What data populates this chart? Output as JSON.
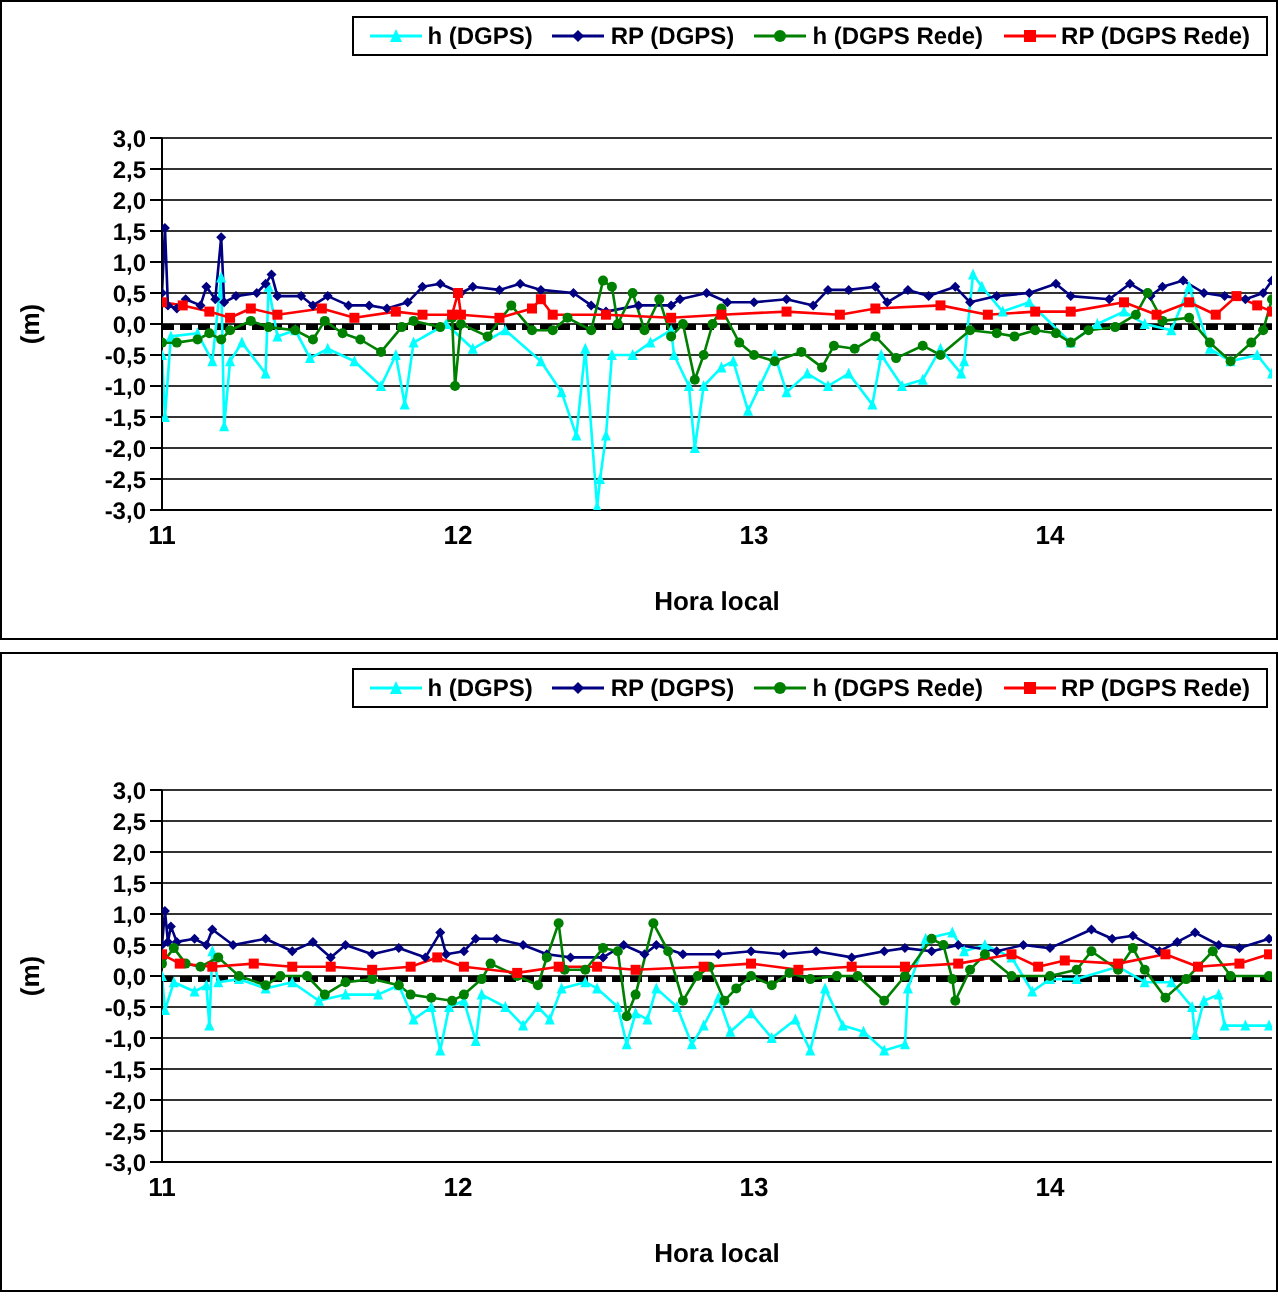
{
  "chart_data": [
    {
      "type": "line",
      "xlabel": "Hora local",
      "ylabel": "(m)",
      "xlim": [
        11,
        14.75
      ],
      "xticks": [
        11,
        12,
        13,
        14
      ],
      "ylim": [
        -3,
        3
      ],
      "yticks": [
        {
          "value": 3,
          "label": "3,0"
        },
        {
          "value": 2.5,
          "label": "2,5"
        },
        {
          "value": 2,
          "label": "2,0"
        },
        {
          "value": 1.5,
          "label": "1,5"
        },
        {
          "value": 1,
          "label": "1,0"
        },
        {
          "value": 0.5,
          "label": "0,5"
        },
        {
          "value": 0,
          "label": "0,0"
        },
        {
          "value": -0.5,
          "label": "-0,5"
        },
        {
          "value": -1,
          "label": "-1,0"
        },
        {
          "value": -1.5,
          "label": "-1,5"
        },
        {
          "value": -2,
          "label": "-2,0"
        },
        {
          "value": -2.5,
          "label": "-2,5"
        },
        {
          "value": -3,
          "label": "-3,0"
        }
      ],
      "grid": "y",
      "legend": "top",
      "ref_lines": [
        {
          "axis": "y",
          "value": -0.05,
          "color": "#000000",
          "line_style": "dashed"
        }
      ],
      "series": [
        {
          "name": "h (DGPS)",
          "color": "#00ffff",
          "marker": "triangle",
          "x": [
            11.0,
            11.01,
            11.03,
            11.12,
            11.17,
            11.2,
            11.21,
            11.23,
            11.27,
            11.35,
            11.36,
            11.39,
            11.45,
            11.5,
            11.56,
            11.65,
            11.74,
            11.79,
            11.82,
            11.85,
            11.96,
            12.05,
            12.16,
            12.28,
            12.35,
            12.4,
            12.43,
            12.47,
            12.48,
            12.5,
            12.52,
            12.59,
            12.65,
            12.72,
            12.73,
            12.78,
            12.8,
            12.83,
            12.89,
            12.93,
            12.98,
            13.02,
            13.07,
            13.11,
            13.18,
            13.25,
            13.32,
            13.4,
            13.43,
            13.5,
            13.57,
            13.63,
            13.7,
            13.71,
            13.74,
            13.77,
            13.84,
            13.93,
            14.07,
            14.16,
            14.25,
            14.32,
            14.41,
            14.47,
            14.54,
            14.61,
            14.7,
            14.75
          ],
          "values": [
            -0.5,
            -1.5,
            -0.2,
            -0.15,
            -0.6,
            0.75,
            -1.65,
            -0.6,
            -0.3,
            -0.8,
            0.6,
            -0.2,
            -0.1,
            -0.55,
            -0.4,
            -0.6,
            -1.0,
            -0.5,
            -1.3,
            -0.3,
            0.0,
            -0.4,
            -0.1,
            -0.6,
            -1.1,
            -1.8,
            -0.4,
            -2.95,
            -2.5,
            -1.8,
            -0.5,
            -0.5,
            -0.3,
            -0.1,
            -0.5,
            -1.0,
            -2.0,
            -1.0,
            -0.7,
            -0.6,
            -1.4,
            -1.0,
            -0.5,
            -1.1,
            -0.8,
            -1.0,
            -0.8,
            -1.3,
            -0.5,
            -1.0,
            -0.9,
            -0.4,
            -0.8,
            -0.6,
            0.8,
            0.6,
            0.2,
            0.35,
            -0.3,
            0.0,
            0.2,
            0.0,
            -0.1,
            0.6,
            -0.4,
            -0.6,
            -0.5,
            -0.8
          ]
        },
        {
          "name": "RP (DGPS)",
          "color": "#000080",
          "marker": "diamond",
          "x": [
            11.0,
            11.01,
            11.02,
            11.05,
            11.08,
            11.13,
            11.15,
            11.18,
            11.2,
            11.21,
            11.25,
            11.32,
            11.35,
            11.37,
            11.39,
            11.47,
            11.51,
            11.56,
            11.63,
            11.7,
            11.76,
            11.83,
            11.88,
            11.94,
            12.01,
            12.05,
            12.14,
            12.21,
            12.28,
            12.39,
            12.45,
            12.5,
            12.61,
            12.72,
            12.75,
            12.84,
            12.91,
            13.0,
            13.11,
            13.2,
            13.25,
            13.32,
            13.41,
            13.45,
            13.52,
            13.59,
            13.68,
            13.73,
            13.82,
            13.93,
            14.02,
            14.07,
            14.2,
            14.27,
            14.34,
            14.38,
            14.45,
            14.52,
            14.59,
            14.66,
            14.72,
            14.75
          ],
          "values": [
            0.5,
            1.55,
            0.3,
            0.25,
            0.4,
            0.3,
            0.6,
            0.4,
            1.4,
            0.35,
            0.45,
            0.5,
            0.65,
            0.8,
            0.45,
            0.45,
            0.3,
            0.45,
            0.3,
            0.3,
            0.25,
            0.35,
            0.6,
            0.65,
            0.5,
            0.6,
            0.55,
            0.65,
            0.55,
            0.5,
            0.3,
            0.2,
            0.3,
            0.3,
            0.4,
            0.5,
            0.35,
            0.35,
            0.4,
            0.3,
            0.55,
            0.55,
            0.6,
            0.35,
            0.55,
            0.45,
            0.6,
            0.35,
            0.45,
            0.5,
            0.65,
            0.45,
            0.4,
            0.65,
            0.45,
            0.6,
            0.7,
            0.5,
            0.45,
            0.4,
            0.5,
            0.7
          ]
        },
        {
          "name": "h (DGPS Rede)",
          "color": "#008000",
          "marker": "circle",
          "x": [
            11.0,
            11.05,
            11.12,
            11.16,
            11.2,
            11.23,
            11.3,
            11.36,
            11.45,
            11.51,
            11.55,
            11.61,
            11.67,
            11.74,
            11.81,
            11.85,
            11.94,
            11.98,
            11.99,
            12.01,
            12.1,
            12.18,
            12.25,
            12.32,
            12.37,
            12.45,
            12.49,
            12.52,
            12.54,
            12.59,
            12.63,
            12.68,
            12.72,
            12.76,
            12.8,
            12.83,
            12.86,
            12.89,
            12.95,
            13.0,
            13.07,
            13.16,
            13.23,
            13.27,
            13.34,
            13.41,
            13.48,
            13.57,
            13.63,
            13.73,
            13.82,
            13.88,
            13.95,
            14.02,
            14.07,
            14.13,
            14.22,
            14.29,
            14.33,
            14.38,
            14.47,
            14.54,
            14.61,
            14.68,
            14.72,
            14.75
          ],
          "values": [
            -0.3,
            -0.3,
            -0.25,
            -0.15,
            -0.25,
            -0.1,
            0.05,
            -0.05,
            -0.1,
            -0.25,
            0.05,
            -0.15,
            -0.25,
            -0.45,
            -0.05,
            0.05,
            -0.05,
            0.1,
            -1.0,
            0.0,
            -0.2,
            0.3,
            -0.1,
            -0.1,
            0.1,
            -0.1,
            0.7,
            0.6,
            0.0,
            0.5,
            -0.1,
            0.4,
            -0.2,
            0.0,
            -0.9,
            -0.5,
            0.0,
            0.25,
            -0.3,
            -0.5,
            -0.6,
            -0.45,
            -0.7,
            -0.35,
            -0.4,
            -0.2,
            -0.55,
            -0.35,
            -0.5,
            -0.1,
            -0.15,
            -0.2,
            -0.1,
            -0.15,
            -0.3,
            -0.1,
            -0.05,
            0.15,
            0.5,
            0.05,
            0.1,
            -0.3,
            -0.6,
            -0.3,
            -0.1,
            0.4
          ]
        },
        {
          "name": "RP (DGPS Rede)",
          "color": "#ff0000",
          "marker": "square",
          "x": [
            11.0,
            11.07,
            11.16,
            11.23,
            11.3,
            11.39,
            11.54,
            11.65,
            11.79,
            11.88,
            11.98,
            12.0,
            12.01,
            12.14,
            12.25,
            12.28,
            12.32,
            12.5,
            12.72,
            12.89,
            13.11,
            13.29,
            13.41,
            13.63,
            13.79,
            13.95,
            14.07,
            14.25,
            14.36,
            14.47,
            14.56,
            14.63,
            14.7,
            14.75
          ],
          "values": [
            0.35,
            0.3,
            0.2,
            0.1,
            0.25,
            0.15,
            0.25,
            0.1,
            0.2,
            0.15,
            0.15,
            0.5,
            0.15,
            0.1,
            0.25,
            0.4,
            0.15,
            0.15,
            0.1,
            0.15,
            0.2,
            0.15,
            0.25,
            0.3,
            0.15,
            0.2,
            0.2,
            0.35,
            0.15,
            0.35,
            0.15,
            0.45,
            0.3,
            0.2
          ]
        }
      ]
    },
    {
      "type": "line",
      "xlabel": "Hora local",
      "ylabel": "(m)",
      "xlim": [
        11,
        14.75
      ],
      "xticks": [
        11,
        12,
        13,
        14
      ],
      "ylim": [
        -3,
        3
      ],
      "yticks": [
        {
          "value": 3,
          "label": "3,0"
        },
        {
          "value": 2.5,
          "label": "2,5"
        },
        {
          "value": 2,
          "label": "2,0"
        },
        {
          "value": 1.5,
          "label": "1,5"
        },
        {
          "value": 1,
          "label": "1,0"
        },
        {
          "value": 0.5,
          "label": "0,5"
        },
        {
          "value": 0,
          "label": "0,0"
        },
        {
          "value": -0.5,
          "label": "-0,5"
        },
        {
          "value": -1,
          "label": "-1,0"
        },
        {
          "value": -1.5,
          "label": "-1,5"
        },
        {
          "value": -2,
          "label": "-2,0"
        },
        {
          "value": -2.5,
          "label": "-2,5"
        },
        {
          "value": -3,
          "label": "-3,0"
        }
      ],
      "grid": "y",
      "legend": "top",
      "ref_lines": [
        {
          "axis": "y",
          "value": -0.05,
          "color": "#000000",
          "line_style": "dashed"
        }
      ],
      "series": [
        {
          "name": "h (DGPS)",
          "color": "#00ffff",
          "marker": "triangle",
          "x": [
            11.0,
            11.01,
            11.04,
            11.11,
            11.15,
            11.16,
            11.17,
            11.19,
            11.26,
            11.35,
            11.44,
            11.53,
            11.62,
            11.73,
            11.8,
            11.85,
            11.91,
            11.94,
            11.97,
            12.02,
            12.06,
            12.08,
            12.16,
            12.22,
            12.27,
            12.31,
            12.35,
            12.43,
            12.47,
            12.54,
            12.57,
            12.6,
            12.64,
            12.67,
            12.74,
            12.79,
            12.83,
            12.88,
            12.92,
            12.99,
            13.06,
            13.14,
            13.19,
            13.24,
            13.3,
            13.37,
            13.44,
            13.51,
            13.52,
            13.58,
            13.67,
            13.71,
            13.78,
            13.87,
            13.94,
            14.0,
            14.09,
            14.23,
            14.32,
            14.41,
            14.48,
            14.49,
            14.52,
            14.57,
            14.59,
            14.66,
            14.74
          ],
          "values": [
            0.0,
            -0.55,
            -0.1,
            -0.25,
            -0.15,
            -0.8,
            0.4,
            -0.1,
            -0.05,
            -0.2,
            -0.1,
            -0.4,
            -0.3,
            -0.3,
            -0.15,
            -0.7,
            -0.5,
            -1.2,
            -0.5,
            -0.4,
            -1.05,
            -0.3,
            -0.5,
            -0.8,
            -0.5,
            -0.7,
            -0.2,
            -0.1,
            -0.2,
            -0.5,
            -1.1,
            -0.6,
            -0.7,
            -0.2,
            -0.5,
            -1.1,
            -0.8,
            -0.35,
            -0.9,
            -0.6,
            -1.0,
            -0.7,
            -1.2,
            -0.2,
            -0.8,
            -0.9,
            -1.2,
            -1.1,
            -0.2,
            0.6,
            0.7,
            0.4,
            0.5,
            0.3,
            -0.25,
            -0.05,
            -0.05,
            0.15,
            -0.1,
            -0.1,
            -0.5,
            -0.95,
            -0.4,
            -0.3,
            -0.8,
            -0.8,
            -0.8
          ]
        },
        {
          "name": "RP (DGPS)",
          "color": "#000080",
          "marker": "diamond",
          "x": [
            11.0,
            11.01,
            11.02,
            11.03,
            11.05,
            11.11,
            11.15,
            11.17,
            11.24,
            11.35,
            11.44,
            11.51,
            11.57,
            11.62,
            11.71,
            11.8,
            11.89,
            11.94,
            11.96,
            12.02,
            12.06,
            12.13,
            12.22,
            12.3,
            12.38,
            12.49,
            12.56,
            12.63,
            12.67,
            12.76,
            12.88,
            12.99,
            13.1,
            13.21,
            13.33,
            13.44,
            13.51,
            13.6,
            13.69,
            13.82,
            13.91,
            14.0,
            14.14,
            14.21,
            14.28,
            14.37,
            14.43,
            14.49,
            14.57,
            14.64,
            14.74
          ],
          "values": [
            0.5,
            1.05,
            0.55,
            0.8,
            0.55,
            0.6,
            0.5,
            0.75,
            0.5,
            0.6,
            0.4,
            0.55,
            0.3,
            0.5,
            0.35,
            0.45,
            0.3,
            0.7,
            0.35,
            0.4,
            0.6,
            0.6,
            0.5,
            0.35,
            0.3,
            0.3,
            0.5,
            0.35,
            0.5,
            0.35,
            0.35,
            0.4,
            0.35,
            0.4,
            0.3,
            0.4,
            0.45,
            0.4,
            0.5,
            0.4,
            0.5,
            0.45,
            0.75,
            0.6,
            0.65,
            0.4,
            0.55,
            0.7,
            0.5,
            0.45,
            0.6
          ]
        },
        {
          "name": "h (DGPS Rede)",
          "color": "#008000",
          "marker": "circle",
          "x": [
            11.0,
            11.04,
            11.08,
            11.13,
            11.19,
            11.26,
            11.35,
            11.4,
            11.49,
            11.55,
            11.62,
            11.71,
            11.8,
            11.84,
            11.91,
            11.98,
            12.02,
            12.08,
            12.11,
            12.2,
            12.27,
            12.3,
            12.34,
            12.36,
            12.43,
            12.49,
            12.54,
            12.57,
            12.6,
            12.66,
            12.71,
            12.76,
            12.81,
            12.85,
            12.9,
            12.94,
            12.99,
            13.06,
            13.12,
            13.19,
            13.28,
            13.35,
            13.44,
            13.51,
            13.6,
            13.64,
            13.67,
            13.68,
            13.73,
            13.78,
            13.87,
            14.0,
            14.09,
            14.14,
            14.23,
            14.28,
            14.32,
            14.39,
            14.46,
            14.55,
            14.61,
            14.74
          ],
          "values": [
            0.2,
            0.45,
            0.2,
            0.15,
            0.3,
            0.0,
            -0.15,
            0.0,
            0.0,
            -0.3,
            -0.1,
            -0.05,
            -0.15,
            -0.3,
            -0.35,
            -0.4,
            -0.3,
            -0.05,
            0.2,
            0.0,
            -0.15,
            0.3,
            0.85,
            0.1,
            0.1,
            0.45,
            0.4,
            -0.65,
            -0.3,
            0.85,
            0.4,
            -0.4,
            0.0,
            0.15,
            -0.4,
            -0.2,
            0.0,
            -0.15,
            0.05,
            -0.05,
            0.0,
            0.0,
            -0.4,
            0.0,
            0.6,
            0.5,
            -0.05,
            -0.4,
            0.1,
            0.35,
            0.0,
            0.0,
            0.1,
            0.4,
            0.1,
            0.45,
            0.1,
            -0.35,
            -0.05,
            0.4,
            0.0,
            0.0
          ]
        },
        {
          "name": "RP (DGPS Rede)",
          "color": "#ff0000",
          "marker": "square",
          "x": [
            11.0,
            11.06,
            11.17,
            11.31,
            11.44,
            11.57,
            11.71,
            11.84,
            11.93,
            12.02,
            12.2,
            12.34,
            12.47,
            12.6,
            12.83,
            12.99,
            13.15,
            13.33,
            13.51,
            13.69,
            13.87,
            13.96,
            14.05,
            14.23,
            14.39,
            14.5,
            14.64,
            14.74
          ],
          "values": [
            0.35,
            0.2,
            0.15,
            0.2,
            0.15,
            0.15,
            0.1,
            0.15,
            0.3,
            0.15,
            0.05,
            0.15,
            0.15,
            0.1,
            0.15,
            0.2,
            0.1,
            0.15,
            0.15,
            0.2,
            0.35,
            0.15,
            0.25,
            0.2,
            0.35,
            0.15,
            0.2,
            0.35
          ]
        }
      ]
    }
  ]
}
